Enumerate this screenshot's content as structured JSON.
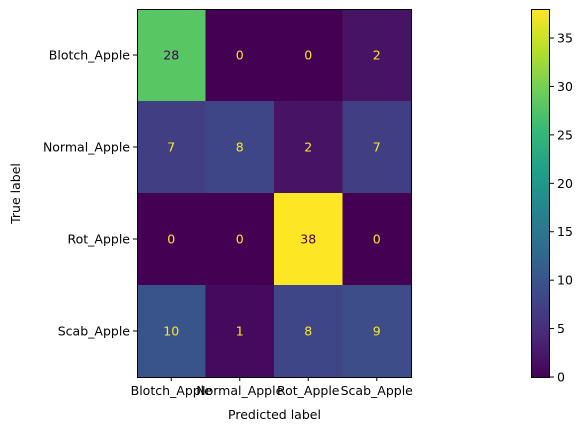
{
  "chart_data": {
    "type": "heatmap",
    "title": "",
    "xlabel": "Predicted label",
    "ylabel": "True label",
    "x_categories": [
      "Blotch_Apple",
      "Normal_Apple",
      "Rot_Apple",
      "Scab_Apple"
    ],
    "y_categories": [
      "Blotch_Apple",
      "Normal_Apple",
      "Rot_Apple",
      "Scab_Apple"
    ],
    "matrix": [
      [
        28,
        0,
        0,
        2
      ],
      [
        7,
        8,
        2,
        7
      ],
      [
        0,
        0,
        38,
        0
      ],
      [
        10,
        1,
        8,
        9
      ]
    ],
    "colormap": "viridis",
    "vmin": 0,
    "vmax": 38,
    "colorbar_ticks": [
      0,
      5,
      10,
      15,
      20,
      25,
      30,
      35
    ],
    "text_color_light": "#fde725",
    "text_color_dark": "#440154"
  }
}
